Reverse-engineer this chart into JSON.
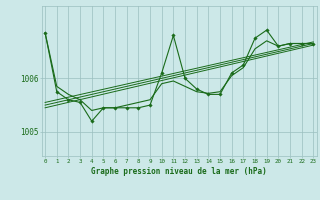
{
  "xlabel": "Graphe pression niveau de la mer (hPa)",
  "x": [
    0,
    1,
    2,
    3,
    4,
    5,
    6,
    7,
    8,
    9,
    10,
    11,
    12,
    13,
    14,
    15,
    16,
    17,
    18,
    19,
    20,
    21,
    22,
    23
  ],
  "data_line": [
    1006.85,
    1005.75,
    1005.6,
    1005.55,
    1005.2,
    1005.45,
    1005.45,
    1005.45,
    1005.45,
    1005.5,
    1006.1,
    1006.8,
    1006.0,
    1005.8,
    1005.7,
    1005.7,
    1006.1,
    1006.25,
    1006.75,
    1006.9,
    1006.6,
    1006.65,
    1006.65,
    1006.65
  ],
  "smooth_line": [
    1006.85,
    1005.85,
    1005.7,
    1005.6,
    1005.4,
    1005.45,
    1005.45,
    1005.5,
    1005.55,
    1005.6,
    1005.9,
    1005.95,
    1005.85,
    1005.75,
    1005.72,
    1005.75,
    1006.05,
    1006.2,
    1006.55,
    1006.7,
    1006.6,
    1006.65,
    1006.65,
    1006.65
  ],
  "trend1_x": [
    0,
    23
  ],
  "trend1_y": [
    1005.55,
    1006.68
  ],
  "trend2_x": [
    0,
    23
  ],
  "trend2_y": [
    1005.5,
    1006.65
  ],
  "trend3_x": [
    0,
    23
  ],
  "trend3_y": [
    1005.45,
    1006.62
  ],
  "line_color": "#1a6b1a",
  "bg_color": "#cce8e8",
  "grid_color": "#9bbfbf",
  "label_color": "#1a6b1a",
  "yticks": [
    1005,
    1006
  ],
  "ylim": [
    1004.55,
    1007.35
  ],
  "xlim": [
    -0.3,
    23.3
  ]
}
